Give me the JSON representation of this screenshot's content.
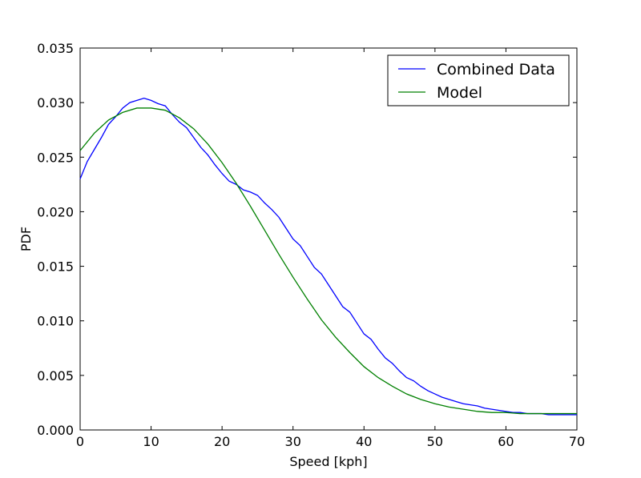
{
  "chart_data": {
    "type": "line",
    "xlabel": "Speed [kph]",
    "ylabel": "PDF",
    "xlim": [
      0,
      70
    ],
    "ylim": [
      0,
      0.035
    ],
    "x_ticks": [
      "0",
      "10",
      "20",
      "30",
      "40",
      "50",
      "60",
      "70"
    ],
    "y_ticks": [
      "0.000",
      "0.005",
      "0.010",
      "0.015",
      "0.020",
      "0.025",
      "0.030",
      "0.035"
    ],
    "grid": false,
    "legend_position": "top-right",
    "series": [
      {
        "name": "Combined Data",
        "color": "#0000ff",
        "x": [
          0,
          1,
          2,
          3,
          4,
          5,
          6,
          7,
          8,
          9,
          10,
          11,
          12,
          13,
          14,
          15,
          16,
          17,
          18,
          19,
          20,
          21,
          22,
          23,
          24,
          25,
          26,
          27,
          28,
          29,
          30,
          31,
          32,
          33,
          34,
          35,
          36,
          37,
          38,
          39,
          40,
          41,
          42,
          43,
          44,
          45,
          46,
          47,
          48,
          49,
          50,
          51,
          52,
          53,
          54,
          55,
          56,
          57,
          58,
          59,
          60,
          61,
          62,
          63,
          64,
          65,
          66,
          67,
          68,
          69,
          70
        ],
        "y": [
          0.023,
          0.0246,
          0.0257,
          0.0268,
          0.028,
          0.0287,
          0.0295,
          0.03,
          0.0302,
          0.0304,
          0.0302,
          0.0299,
          0.0297,
          0.0289,
          0.0282,
          0.0277,
          0.0268,
          0.0259,
          0.0252,
          0.0243,
          0.0235,
          0.0228,
          0.0225,
          0.022,
          0.0218,
          0.0215,
          0.0208,
          0.0202,
          0.0195,
          0.0185,
          0.0175,
          0.0169,
          0.0159,
          0.0149,
          0.0143,
          0.0133,
          0.0123,
          0.0113,
          0.0108,
          0.0098,
          0.0088,
          0.0083,
          0.0074,
          0.0066,
          0.0061,
          0.0054,
          0.0048,
          0.0045,
          0.004,
          0.0036,
          0.0033,
          0.003,
          0.0028,
          0.0026,
          0.0024,
          0.0023,
          0.0022,
          0.002,
          0.0019,
          0.0018,
          0.0017,
          0.0016,
          0.0016,
          0.0015,
          0.0015,
          0.0015,
          0.0014,
          0.0014,
          0.0014,
          0.0014,
          0.0014
        ]
      },
      {
        "name": "Model",
        "color": "#008000",
        "x": [
          0,
          2,
          4,
          6,
          8,
          10,
          12,
          14,
          16,
          18,
          20,
          22,
          24,
          26,
          28,
          30,
          32,
          34,
          36,
          38,
          40,
          42,
          44,
          46,
          48,
          50,
          52,
          54,
          56,
          58,
          60,
          62,
          64,
          66,
          68,
          70
        ],
        "y": [
          0.0256,
          0.0272,
          0.0284,
          0.0291,
          0.0295,
          0.0295,
          0.0293,
          0.0286,
          0.0276,
          0.0262,
          0.0245,
          0.0226,
          0.0205,
          0.0183,
          0.0161,
          0.014,
          0.012,
          0.0101,
          0.0085,
          0.0071,
          0.0058,
          0.0048,
          0.004,
          0.0033,
          0.0028,
          0.0024,
          0.0021,
          0.0019,
          0.0017,
          0.0016,
          0.0016,
          0.0015,
          0.0015,
          0.0015,
          0.0015,
          0.0015
        ]
      }
    ]
  }
}
